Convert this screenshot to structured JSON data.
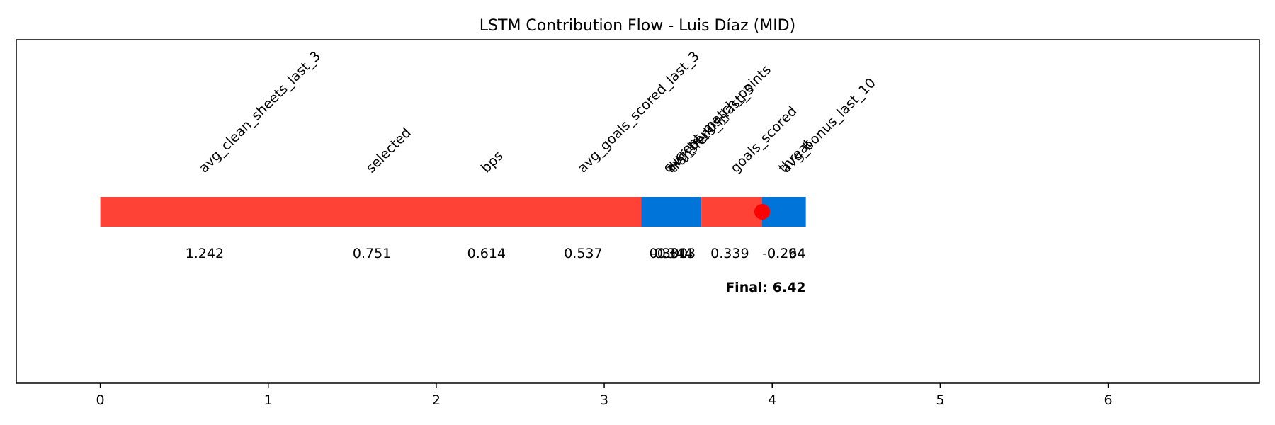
{
  "colors": {
    "positive": "#ff4136",
    "negative": "#0074d9",
    "marker": "#ff0000",
    "frame": "#000000"
  },
  "chart_data": {
    "type": "bar",
    "title": "LSTM Contribution Flow - Luis Díaz (MID)",
    "xlabel": "",
    "ylabel": "",
    "xlim": [
      -0.5,
      6.9
    ],
    "x_ticks": [
      0,
      1,
      2,
      3,
      4,
      5,
      6
    ],
    "x_tick_labels": [
      "0",
      "1",
      "2",
      "3",
      "4",
      "5",
      "6"
    ],
    "grid": false,
    "segments": [
      {
        "feature": "avg_clean_sheets_last_3",
        "start": 0.0,
        "end": 3.221,
        "label_x": 0.62,
        "value_x": 0.621,
        "value": 1.242,
        "value_label": "1.242",
        "sign": "positive"
      },
      {
        "feature": "selected",
        "start": 0.0,
        "end": 3.221,
        "label_x": 1.615,
        "value_x": 1.617,
        "value": 0.751,
        "value_label": "0.751",
        "sign": "positive"
      },
      {
        "feature": "bps",
        "start": 0.0,
        "end": 3.221,
        "label_x": 2.3,
        "value_x": 2.299,
        "value": 0.614,
        "value_label": "0.614",
        "sign": "positive"
      },
      {
        "feature": "avg_goals_scored_last_3",
        "start": 0.0,
        "end": 3.221,
        "label_x": 2.875,
        "value_x": 2.875,
        "value": 0.537,
        "value_label": "0.537",
        "sign": "positive"
      },
      {
        "feature": "current_match_points",
        "start": 3.221,
        "end": 3.578,
        "label_x": 3.3825,
        "value_x": 3.3825,
        "value": 0.3,
        "value_label": "0.300",
        "sign": "positive"
      },
      {
        "feature": "avg_bonus_last_3",
        "start": 3.221,
        "end": 3.578,
        "label_x": 3.399,
        "value_x": 3.399,
        "value": -0.344,
        "value_label": "-0.344",
        "sign": "negative"
      },
      {
        "feature": "transfers_in",
        "start": 3.221,
        "end": 3.578,
        "label_x": 3.415,
        "value_x": 3.415,
        "value": -0.313,
        "value_label": "-0.313",
        "sign": "negative"
      },
      {
        "feature": "goals_scored",
        "start": 3.578,
        "end": 3.94,
        "label_x": 3.7845,
        "value_x": 3.7475,
        "value": 0.339,
        "value_label": "0.339",
        "sign": "positive"
      },
      {
        "feature": "avg_bonus_last_10",
        "start": 3.578,
        "end": 3.94,
        "label_x": 4.085,
        "value_x": 4.085,
        "value": 0.264,
        "value_label": "0.264",
        "sign": "positive"
      },
      {
        "feature": "threat",
        "start": 3.94,
        "end": 4.2,
        "label_x": 4.07,
        "value_x": 4.069,
        "value": -0.294,
        "value_label": "-0.294",
        "sign": "negative"
      }
    ],
    "bars": [
      {
        "start": 0.0,
        "end": 3.221,
        "sign": "positive"
      },
      {
        "start": 3.221,
        "end": 3.578,
        "sign": "negative"
      },
      {
        "start": 3.578,
        "end": 3.94,
        "sign": "positive"
      },
      {
        "start": 3.94,
        "end": 4.2,
        "sign": "negative"
      }
    ],
    "marker": {
      "x": 3.94
    },
    "final": {
      "value": 6.42,
      "label": "Final: 6.42",
      "anchor_x": 4.2
    }
  }
}
